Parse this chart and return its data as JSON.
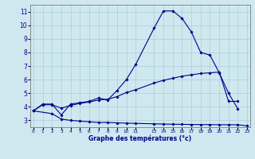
{
  "xlabel": "Graphe des températures (°c)",
  "bg_color": "#cfe8ef",
  "line_color": "#00008b",
  "xlim": [
    -0.3,
    23.3
  ],
  "ylim": [
    2.5,
    11.5
  ],
  "yticks": [
    3,
    4,
    5,
    6,
    7,
    8,
    9,
    10,
    11
  ],
  "x_positions": [
    0,
    1,
    2,
    3,
    4,
    5,
    6,
    7,
    8,
    9,
    10,
    11,
    13,
    14,
    15,
    16,
    17,
    18,
    19,
    20,
    21,
    22,
    23
  ],
  "x_tick_labels": [
    "0",
    "1",
    "2",
    "3",
    "4",
    "5",
    "6",
    "7",
    "8",
    "9",
    "10",
    "11",
    "13",
    "14",
    "15",
    "16",
    "17",
    "18",
    "19",
    "20",
    "21",
    "22",
    "23"
  ],
  "line1_x": [
    0,
    1,
    2,
    3,
    4,
    5,
    6,
    7,
    8,
    9,
    10,
    11,
    13,
    14,
    15,
    16,
    17,
    18,
    19,
    20,
    21,
    22
  ],
  "line1_y": [
    3.7,
    4.2,
    4.2,
    3.4,
    4.2,
    4.3,
    4.4,
    4.65,
    4.5,
    5.2,
    6.0,
    7.1,
    9.8,
    11.05,
    11.05,
    10.5,
    9.5,
    8.0,
    7.8,
    6.5,
    5.0,
    3.85
  ],
  "line2_x": [
    0,
    1,
    2,
    3,
    4,
    5,
    6,
    7,
    8,
    9,
    10,
    11,
    13,
    14,
    15,
    16,
    17,
    18,
    19,
    20,
    21,
    22
  ],
  "line2_y": [
    3.7,
    4.15,
    4.15,
    3.9,
    4.1,
    4.25,
    4.35,
    4.5,
    4.55,
    4.75,
    5.05,
    5.25,
    5.75,
    5.95,
    6.1,
    6.25,
    6.35,
    6.45,
    6.5,
    6.55,
    4.4,
    4.4
  ],
  "line3_x": [
    0,
    2,
    3,
    4,
    5,
    6,
    7,
    8,
    9,
    10,
    11,
    13,
    14,
    15,
    16,
    17,
    18,
    19,
    20,
    21,
    22,
    23
  ],
  "line3_y": [
    3.7,
    3.5,
    3.1,
    3.0,
    2.95,
    2.9,
    2.85,
    2.85,
    2.82,
    2.8,
    2.78,
    2.75,
    2.73,
    2.72,
    2.71,
    2.7,
    2.69,
    2.69,
    2.68,
    2.68,
    2.68,
    2.6
  ]
}
